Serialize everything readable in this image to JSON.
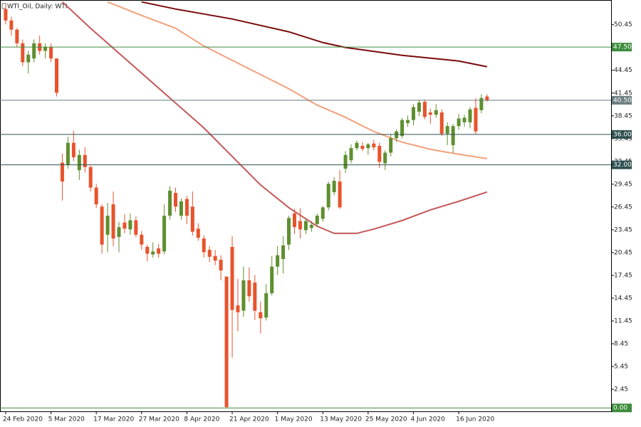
{
  "chart_data": {
    "type": "candlestick",
    "title": "WTI_Oil, Daily:  WTI",
    "up_color": "#5e8f2f",
    "down_color": "#e8532c",
    "open": [
      52.5,
      51,
      49.8,
      48,
      45.5,
      46,
      48,
      47,
      47.5,
      46,
      32.3,
      32,
      34.9,
      31.3,
      33.3,
      31.7,
      29,
      26.5,
      22.8,
      26.8,
      22.5,
      24.4,
      23.5,
      24.7,
      22.8,
      21.2,
      20.2,
      21,
      20.6,
      25.3,
      28.3,
      25.3,
      27.5,
      26.5,
      23.6,
      22.3,
      20.8,
      20,
      19.5,
      17.3,
      21.2,
      13.5,
      12.8,
      16.8,
      16.5,
      12.6,
      11.9,
      15.1,
      18.6,
      19.6,
      21.5,
      25.6,
      24.6,
      23.4,
      23.7,
      24.2,
      24.9,
      26.4,
      28.4,
      29.8,
      31.5,
      32.6,
      34.2,
      34.5,
      34.2,
      34.8,
      34.5,
      32.2,
      33.6,
      35.5,
      35.8,
      37.5,
      37.9,
      39,
      40.3,
      38.9,
      38.6,
      38.9,
      36.1,
      34.6,
      37.1,
      37.6,
      37.6,
      39.5,
      39.2,
      41
    ],
    "high": [
      53,
      51.5,
      50,
      48.5,
      47,
      48.5,
      49,
      48,
      48,
      46,
      33.5,
      35.7,
      36.5,
      34,
      34.3,
      31.9,
      29.5,
      26.8,
      27,
      28.5,
      24.5,
      25.5,
      25.6,
      25.2,
      23.3,
      21.5,
      21.8,
      21.6,
      26.8,
      29.2,
      29,
      27.6,
      27.9,
      28.5,
      24.3,
      22.7,
      21.3,
      20.8,
      20.1,
      17.3,
      22.6,
      17,
      18.6,
      18.5,
      17.5,
      14,
      16.3,
      20,
      21.3,
      22.6,
      25.3,
      26.2,
      26.3,
      25,
      24.6,
      25.6,
      26.6,
      29.8,
      30.4,
      31.3,
      33.8,
      34.7,
      35.2,
      35,
      34.9,
      35.3,
      34.9,
      33.9,
      36,
      36.7,
      38.2,
      38.5,
      40,
      40.5,
      40.6,
      39.4,
      40,
      39.3,
      37.6,
      37.4,
      38.7,
      38.6,
      39.6,
      40.8,
      41.3,
      41.3
    ],
    "low": [
      50.5,
      49,
      47.5,
      45,
      44,
      45.5,
      46.5,
      46,
      45.5,
      41,
      27.3,
      31.5,
      32.5,
      30,
      31,
      28.5,
      26.3,
      20.3,
      20.5,
      21.3,
      20.5,
      23,
      22.8,
      22.5,
      20.8,
      19.3,
      19.8,
      19.8,
      20.2,
      24.8,
      25.8,
      24.8,
      24.2,
      22.7,
      22,
      19.8,
      19.2,
      18.8,
      16.8,
      0,
      6.6,
      10.1,
      12,
      14,
      11.6,
      9.8,
      11.5,
      14.8,
      17.5,
      17.7,
      20.8,
      22.9,
      22.3,
      22.9,
      23.2,
      23.8,
      24.5,
      26,
      28,
      26.2,
      30.9,
      32.2,
      33.9,
      33.8,
      33.3,
      33.9,
      31.6,
      31.3,
      33.1,
      35,
      35.5,
      37,
      37.2,
      38.4,
      38,
      37.4,
      38.2,
      35.8,
      34.6,
      33.6,
      36.6,
      37,
      36.8,
      36,
      38.8,
      40.3
    ],
    "close": [
      51,
      49.8,
      48,
      45.5,
      46.5,
      48,
      47,
      47.5,
      46,
      41.5,
      29.8,
      34.9,
      33,
      33.3,
      31.7,
      29,
      26.8,
      21.5,
      25.3,
      22.3,
      23.8,
      23.6,
      24.7,
      22.8,
      21.5,
      20.3,
      20.6,
      20.3,
      25.3,
      28.6,
      26.5,
      27.2,
      25.3,
      23.2,
      22.4,
      20.5,
      19.9,
      19.4,
      18.1,
      0.1,
      12.9,
      12.6,
      16.8,
      14.7,
      12.8,
      11.8,
      15.1,
      18.6,
      20.1,
      21.4,
      25,
      23.8,
      23.5,
      24.6,
      24.1,
      25.3,
      26.4,
      29.5,
      29.9,
      26.4,
      33.3,
      34.2,
      34.9,
      34.1,
      34.7,
      34.3,
      32.4,
      33.6,
      35.5,
      36.4,
      37.9,
      37.9,
      39.6,
      40.2,
      38.3,
      38.6,
      39.2,
      36.1,
      37.1,
      37.1,
      38.1,
      38.2,
      39.3,
      36.4,
      40.8,
      40.5
    ],
    "series": [
      {
        "color": "#7a0a0a",
        "x": [
          24,
          30,
          40,
          50,
          56,
          60,
          70,
          80,
          85
        ],
        "values": [
          53.45,
          52.51,
          51.2,
          49.51,
          48.1,
          47.45,
          46.42,
          45.67,
          44.92
        ]
      },
      {
        "color": "#f4a07c",
        "x": [
          18,
          24,
          30,
          35,
          40,
          45,
          50,
          55,
          60,
          65,
          70,
          75,
          80,
          85
        ],
        "values": [
          53.45,
          51.67,
          49.98,
          47.64,
          45.76,
          43.89,
          42.01,
          39.86,
          38.26,
          36.39,
          34.98,
          34.04,
          33.39,
          32.82
        ]
      },
      {
        "color": "#c4575a",
        "x": [
          10,
          15,
          20,
          25,
          30,
          35,
          40,
          45,
          50,
          55,
          58,
          62,
          65,
          70,
          75,
          80,
          85
        ],
        "values": [
          53.45,
          49.98,
          46.7,
          43.42,
          40.14,
          36.86,
          33.11,
          29.36,
          26.36,
          23.92,
          22.98,
          22.98,
          23.54,
          24.67,
          26.07,
          27.2,
          28.42
        ]
      }
    ],
    "xlim": [
      -1,
      106.9
    ],
    "xticks": [
      {
        "value": 0,
        "label": "24 Feb 2020"
      },
      {
        "value": 8,
        "label": "5 Mar 2020"
      },
      {
        "value": 16,
        "label": "17 Mar 2020"
      },
      {
        "value": 24,
        "label": "27 Mar 2020"
      },
      {
        "value": 32,
        "label": "8 Apr 2020"
      },
      {
        "value": 40,
        "label": "21 Apr 2020"
      },
      {
        "value": 48,
        "label": "1 May 2020"
      },
      {
        "value": 56,
        "label": "13 May 2020"
      },
      {
        "value": 64,
        "label": "25 May 2020"
      },
      {
        "value": 72,
        "label": "4 Jun 2020"
      },
      {
        "value": 80,
        "label": "16 Jun 2020"
      }
    ],
    "ylim": [
      -0.45,
      53.7
    ],
    "yticks": [
      50.45,
      44.45,
      41.45,
      38.45,
      35.45,
      32.45,
      29.45,
      26.45,
      23.45,
      20.45,
      17.45,
      14.45,
      11.45,
      8.45,
      5.45,
      2.45
    ],
    "grid": false,
    "levels": [
      {
        "value": 47.5,
        "label": "47.50"
      },
      {
        "value": 40.5,
        "label": "40.50"
      },
      {
        "value": 36,
        "label": "36.00"
      },
      {
        "value": 32,
        "label": "32.00"
      },
      {
        "value": 0,
        "label": "0.00"
      }
    ],
    "level_colors": [
      "#3c8c3c",
      "#6a7c7e",
      "#2f4f4f",
      "#2f4f4f",
      "#3c8c3c"
    ]
  }
}
